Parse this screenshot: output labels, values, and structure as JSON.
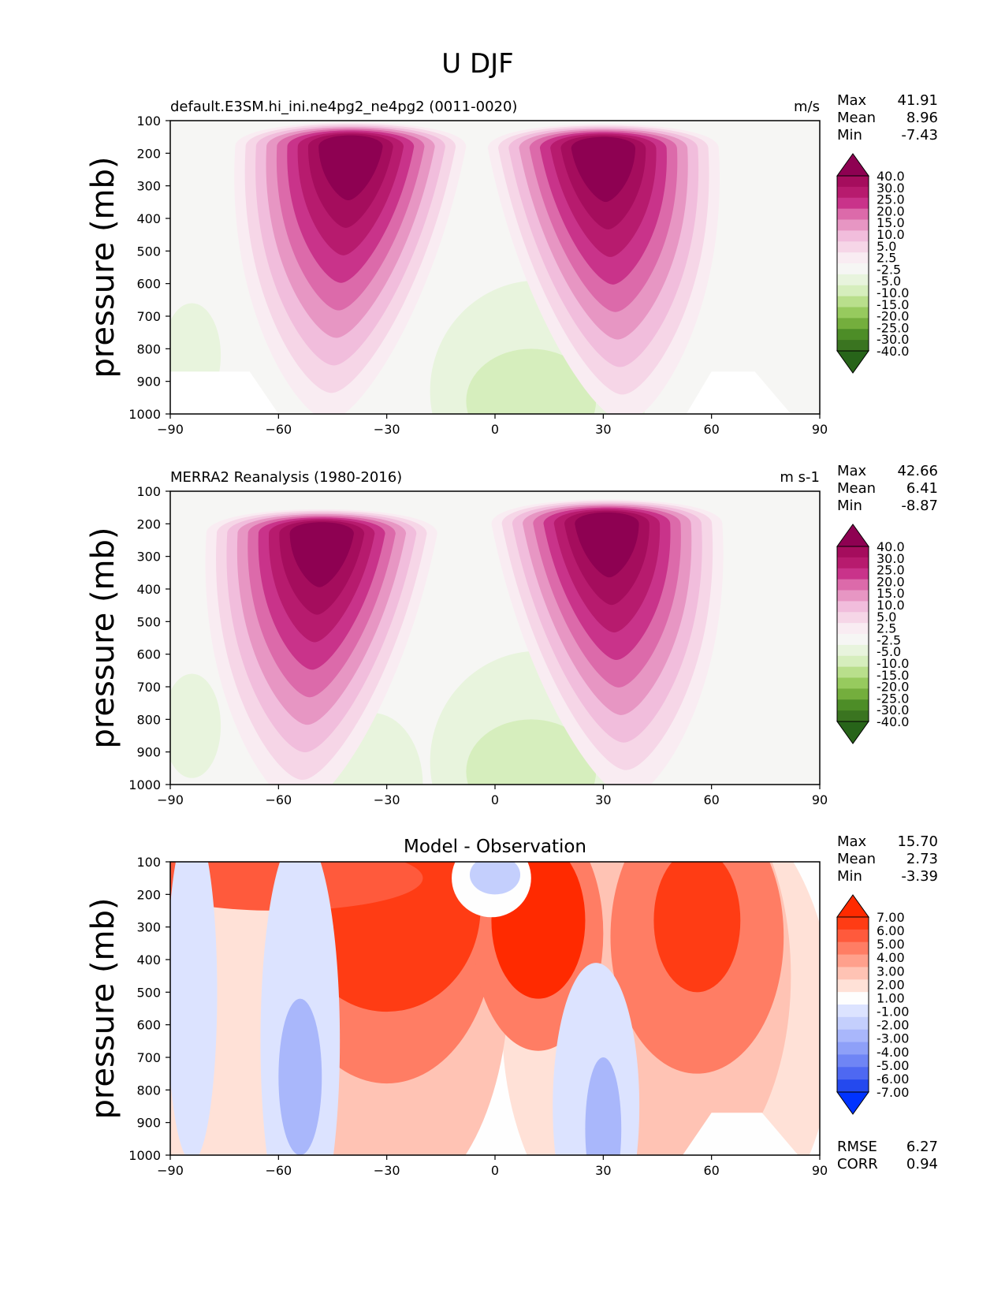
{
  "figure": {
    "title": "U DJF"
  },
  "chart_data": [
    {
      "type": "contour",
      "title_left": "default.E3SM.hi_ini.ne4pg2_ne4pg2 (0011-0020)",
      "title_center": "",
      "units": "m/s",
      "xlabel": "",
      "ylabel": "pressure (mb)",
      "xlim": [
        -90,
        90
      ],
      "ylim": [
        1000,
        100
      ],
      "xticks": [
        "−90",
        "−60",
        "−30",
        "0",
        "30",
        "60",
        "90"
      ],
      "xtick_values": [
        -90,
        -60,
        -30,
        0,
        30,
        60,
        90
      ],
      "yticks": [
        "100",
        "200",
        "300",
        "400",
        "500",
        "600",
        "700",
        "800",
        "900",
        "1000"
      ],
      "ytick_values": [
        100,
        200,
        300,
        400,
        500,
        600,
        700,
        800,
        900,
        1000
      ],
      "stats": [
        {
          "label": "Max",
          "value": "41.91"
        },
        {
          "label": "Mean",
          "value": "8.96"
        },
        {
          "label": "Min",
          "value": "-7.43"
        }
      ],
      "colorbar_labels": [
        "40.0",
        "30.0",
        "25.0",
        "20.0",
        "15.0",
        "10.0",
        "5.0",
        "2.5",
        "-2.5",
        "-5.0",
        "-10.0",
        "-15.0",
        "-20.0",
        "-25.0",
        "-30.0",
        "-40.0"
      ],
      "colorbar_colors": [
        "#8e0152",
        "#a50d5d",
        "#b71b6e",
        "#c9338a",
        "#dc6aaa",
        "#e796c3",
        "#f1bddc",
        "#f6d6e7",
        "#f9ecf2",
        "#f6f6f4",
        "#e8f4dd",
        "#d6eebd",
        "#b9df8c",
        "#97ca5e",
        "#74ae3d",
        "#4d8d27",
        "#3a7420",
        "#276419"
      ],
      "jets": [
        {
          "lat": -40,
          "p": 180,
          "peak": 41.9
        },
        {
          "lat": 30,
          "p": 185,
          "peak": 41.9
        }
      ]
    },
    {
      "type": "contour",
      "title_left": "MERRA2 Reanalysis (1980-2016)",
      "title_center": "",
      "units": "m s-1",
      "xlabel": "",
      "ylabel": "pressure (mb)",
      "xlim": [
        -90,
        90
      ],
      "ylim": [
        1000,
        100
      ],
      "xticks": [
        "−90",
        "−60",
        "−30",
        "0",
        "30",
        "60",
        "90"
      ],
      "xtick_values": [
        -90,
        -60,
        -30,
        0,
        30,
        60,
        90
      ],
      "yticks": [
        "100",
        "200",
        "300",
        "400",
        "500",
        "600",
        "700",
        "800",
        "900",
        "1000"
      ],
      "ytick_values": [
        100,
        200,
        300,
        400,
        500,
        600,
        700,
        800,
        900,
        1000
      ],
      "stats": [
        {
          "label": "Max",
          "value": "42.66"
        },
        {
          "label": "Mean",
          "value": "6.41"
        },
        {
          "label": "Min",
          "value": "-8.87"
        }
      ],
      "colorbar_labels": [
        "40.0",
        "30.0",
        "25.0",
        "20.0",
        "15.0",
        "10.0",
        "5.0",
        "2.5",
        "-2.5",
        "-5.0",
        "-10.0",
        "-15.0",
        "-20.0",
        "-25.0",
        "-30.0",
        "-40.0"
      ],
      "colorbar_colors": [
        "#8e0152",
        "#a50d5d",
        "#b71b6e",
        "#c9338a",
        "#dc6aaa",
        "#e796c3",
        "#f1bddc",
        "#f6d6e7",
        "#f9ecf2",
        "#f6f6f4",
        "#e8f4dd",
        "#d6eebd",
        "#b9df8c",
        "#97ca5e",
        "#74ae3d",
        "#4d8d27",
        "#3a7420",
        "#276419"
      ],
      "jets": [
        {
          "lat": -48,
          "p": 230,
          "peak": 35
        },
        {
          "lat": 31,
          "p": 200,
          "peak": 42.7
        }
      ]
    },
    {
      "type": "contour",
      "title_left": "",
      "title_center": "Model - Observation",
      "units": "",
      "xlabel": "",
      "ylabel": "pressure (mb)",
      "xlim": [
        -90,
        90
      ],
      "ylim": [
        1000,
        100
      ],
      "xticks": [
        "−90",
        "−60",
        "−30",
        "0",
        "30",
        "60",
        "90"
      ],
      "xtick_values": [
        -90,
        -60,
        -30,
        0,
        30,
        60,
        90
      ],
      "yticks": [
        "100",
        "200",
        "300",
        "400",
        "500",
        "600",
        "700",
        "800",
        "900",
        "1000"
      ],
      "ytick_values": [
        100,
        200,
        300,
        400,
        500,
        600,
        700,
        800,
        900,
        1000
      ],
      "stats": [
        {
          "label": "Max",
          "value": "15.70"
        },
        {
          "label": "Mean",
          "value": "2.73"
        },
        {
          "label": "Min",
          "value": "-3.39"
        }
      ],
      "extra_stats": [
        {
          "label": "RMSE",
          "value": "6.27"
        },
        {
          "label": "CORR",
          "value": "0.94"
        }
      ],
      "colorbar_labels": [
        "7.00",
        "6.00",
        "5.00",
        "4.00",
        "3.00",
        "2.00",
        "1.00",
        "-1.00",
        "-2.00",
        "-3.00",
        "-4.00",
        "-5.00",
        "-6.00",
        "-7.00"
      ],
      "colorbar_colors": [
        "#ff2a00",
        "#ff3c14",
        "#ff5a3c",
        "#ff7d64",
        "#ffa08c",
        "#ffc3b4",
        "#ffe1d7",
        "#fefefe",
        "#dce3ff",
        "#c4cffd",
        "#a9b7fb",
        "#8ea0f8",
        "#6f85f5",
        "#4e68f2",
        "#2449ee",
        "#0033ff"
      ],
      "jets": []
    }
  ]
}
